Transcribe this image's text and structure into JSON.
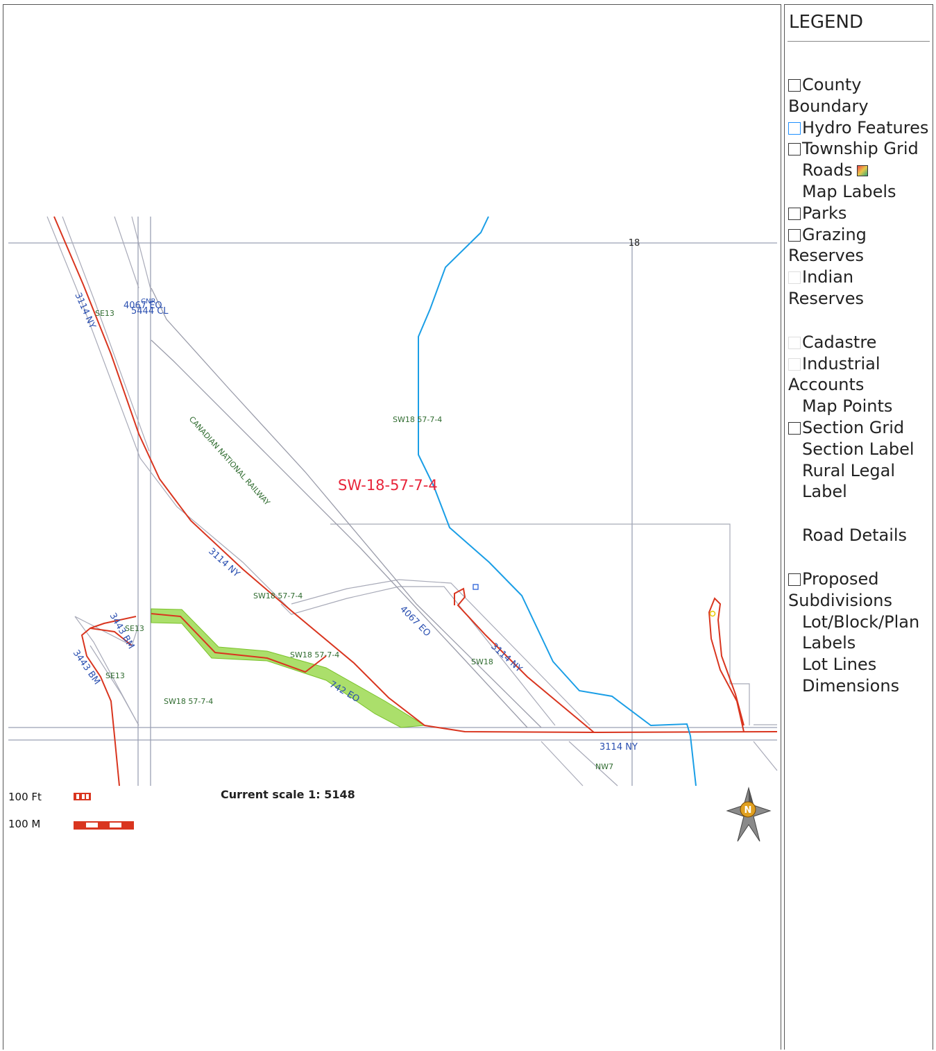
{
  "legend": {
    "title": "LEGEND",
    "items": [
      {
        "label": "County Boundary",
        "checkbox": "plain"
      },
      {
        "label": "Hydro Features",
        "checkbox": "blue"
      },
      {
        "label": "Township Grid",
        "checkbox": "plain"
      },
      {
        "label": "Roads",
        "checkbox": "none",
        "swatch": "roads-swatch-icon"
      },
      {
        "label": "Map Labels",
        "checkbox": "faint-icon"
      },
      {
        "label": "Parks",
        "checkbox": "plain"
      },
      {
        "label": "Grazing Reserves",
        "checkbox": "plain"
      },
      {
        "label": "Indian Reserves",
        "checkbox": "faint"
      },
      {
        "label": "Cadastre",
        "checkbox": "faint"
      },
      {
        "label": "Industrial Accounts",
        "checkbox": "faint"
      },
      {
        "label": "Map Points",
        "checkbox": "none"
      },
      {
        "label": "Section Grid",
        "checkbox": "plain"
      },
      {
        "label": "Section Label",
        "checkbox": "faint-icon"
      },
      {
        "label": "Rural Legal Label",
        "checkbox": "faint-icon"
      },
      {
        "label": "Road Details",
        "checkbox": "faint-icon"
      },
      {
        "label": "Proposed Subdivisions",
        "checkbox": "plain"
      },
      {
        "label": "Lot/Block/Plan Labels",
        "checkbox": "faint-icon"
      },
      {
        "label": "Lot Lines",
        "checkbox": "faint-icon"
      },
      {
        "label": "Dimensions",
        "checkbox": "faint-icon"
      }
    ]
  },
  "scale": {
    "feet_label": "100 Ft",
    "meters_label": "100 M",
    "current": "Current scale 1: 5148"
  },
  "map": {
    "parcel_label": "SW-18-57-7-4",
    "section_number": "18",
    "railway": "CANADIAN NATIONAL RAILWAY",
    "labels": {
      "road_3114_nw": "3114 NY",
      "road_3114_mid": "3114 NY",
      "road_3114_east": "3114 NY",
      "road_3114_bottom": "3114 NY",
      "road_4067_eo": "4067 EO",
      "road_4067_eo_top": "4067 EO",
      "road_5444_cl": "5444 CL",
      "cnr": "CNR",
      "road_742_eo": "742 EO",
      "road_3443_bm_a": "3443 BM",
      "road_3443_bm_b": "3443 BM",
      "se13_a": "SE13",
      "se13_b": "SE13",
      "se13_c": "SE13",
      "sw18_a": "SW18 57-7-4",
      "sw18_b": "SW18 57-7-4",
      "sw18_c": "SW18 57-7-4",
      "sw18_d": "SW18 57-7-4",
      "sw18_e": "SW18",
      "nw7": "NW7"
    },
    "north_arrow": "N",
    "colors": {
      "road_red": "#d9351f",
      "hydro_blue": "#1a9ee6",
      "grid_gray": "#9aa0b4",
      "highlight_green": "#8fd43a",
      "label_blue": "#2a4fb0",
      "label_green": "#2f6b2f",
      "parcel_red": "#e8243a"
    }
  }
}
